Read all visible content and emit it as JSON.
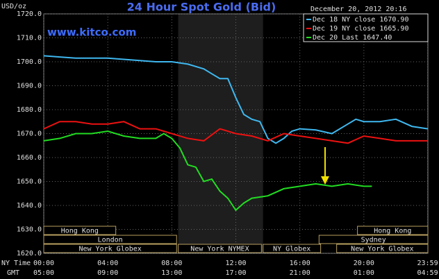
{
  "chart_data": {
    "type": "line",
    "title": "24 Hour Spot Gold (Bid)",
    "subtitle": "December 20, 2012 20:16",
    "source": "www.kitco.com",
    "y_label": "USD/oz",
    "x_label": "NY Time",
    "x2_label": "GMT",
    "xlim": [
      0,
      24
    ],
    "xticks": [
      {
        "value": 0,
        "label": "00:00"
      },
      {
        "value": 4,
        "label": "04:00"
      },
      {
        "value": 8,
        "label": "08:00"
      },
      {
        "value": 12,
        "label": "12:00"
      },
      {
        "value": 16,
        "label": "16:00"
      },
      {
        "value": 20,
        "label": "20:00"
      },
      {
        "value": 23.98,
        "label": "23:59"
      }
    ],
    "gmt_labels": [
      "05:00",
      "09:00",
      "13:00",
      "17:00",
      "21:00",
      "01:00",
      "04:59"
    ],
    "ylim": [
      1620,
      1720
    ],
    "yticks": [
      {
        "value": 1620,
        "label": "1620.0"
      },
      {
        "value": 1630,
        "label": "1630.0"
      },
      {
        "value": 1640,
        "label": "1640.0"
      },
      {
        "value": 1650,
        "label": "1650.0"
      },
      {
        "value": 1660,
        "label": "1660.0"
      },
      {
        "value": 1670,
        "label": "1670.0"
      },
      {
        "value": 1680,
        "label": "1680.0"
      },
      {
        "value": 1690,
        "label": "1690.0"
      },
      {
        "value": 1700,
        "label": "1700.0"
      },
      {
        "value": 1710,
        "label": "1710.0"
      },
      {
        "value": 1720,
        "label": "1720.0"
      }
    ],
    "grid": true,
    "highlight_x": [
      8.4,
      13.7
    ],
    "series": [
      {
        "name": "Dec 18 NY close 1670.90",
        "color": "#3fb8f0",
        "x": [
          0,
          1,
          2,
          3,
          4,
          5,
          6,
          7,
          8,
          9,
          10,
          10.5,
          11,
          11.5,
          12,
          12.5,
          13,
          13.5,
          14,
          14.5,
          15,
          15.5,
          16,
          17,
          18,
          19,
          19.5,
          20,
          21,
          22,
          23,
          24
        ],
        "values": [
          1702.5,
          1702,
          1701.5,
          1701.5,
          1701.5,
          1701,
          1700.5,
          1700,
          1700,
          1699,
          1697,
          1695,
          1693,
          1693,
          1685,
          1678,
          1676,
          1675,
          1668,
          1666,
          1668,
          1671,
          1672,
          1671.5,
          1670,
          1674,
          1676,
          1675,
          1675,
          1676,
          1673,
          1672
        ]
      },
      {
        "name": "Dec 19 NY close 1665.90",
        "color": "#ee1111",
        "x": [
          0,
          1,
          2,
          3,
          4,
          5,
          6,
          7,
          8,
          9,
          10,
          11,
          12,
          13,
          14,
          15,
          16,
          17,
          18,
          19,
          20,
          21,
          22,
          23,
          24
        ],
        "values": [
          1672,
          1675,
          1675,
          1674,
          1674,
          1675,
          1672,
          1672,
          1670,
          1668,
          1667,
          1672,
          1670,
          1669,
          1667,
          1670,
          1669,
          1668,
          1667,
          1666,
          1669,
          1668,
          1667,
          1667,
          1667
        ]
      },
      {
        "name": "Dec 20 Last 1647.40",
        "color": "#22dd22",
        "x": [
          0,
          1,
          2,
          3,
          4,
          5,
          6,
          7,
          7.5,
          8,
          8.5,
          9,
          9.5,
          10,
          10.5,
          11,
          11.5,
          12,
          12.5,
          13,
          14,
          15,
          16,
          17,
          18,
          19,
          20,
          20.5
        ],
        "values": [
          1667,
          1668,
          1670,
          1670,
          1671,
          1669,
          1668,
          1668,
          1670,
          1668,
          1664,
          1657,
          1656,
          1650,
          1651,
          1646,
          1643,
          1638,
          1641,
          1643,
          1644,
          1647,
          1648,
          1649,
          1648,
          1649,
          1648,
          1648
        ]
      }
    ],
    "sessions": [
      {
        "label": "Hong Kong",
        "start": 0,
        "end": 4.5
      },
      {
        "label": "London",
        "start": 0,
        "end": 8.3
      },
      {
        "label": "New York Globex",
        "start": 0,
        "end": 8.3
      },
      {
        "label": "New York NYMEX",
        "start": 8.4,
        "end": 13.6
      },
      {
        "label": "NY Globex",
        "start": 13.7,
        "end": 17.3
      },
      {
        "label": "Sydney",
        "start": 17.2,
        "end": 24
      },
      {
        "label": "Hong Kong",
        "start": 19.6,
        "end": 24
      },
      {
        "label": "New York Globex",
        "start": 18.3,
        "end": 24
      }
    ]
  }
}
